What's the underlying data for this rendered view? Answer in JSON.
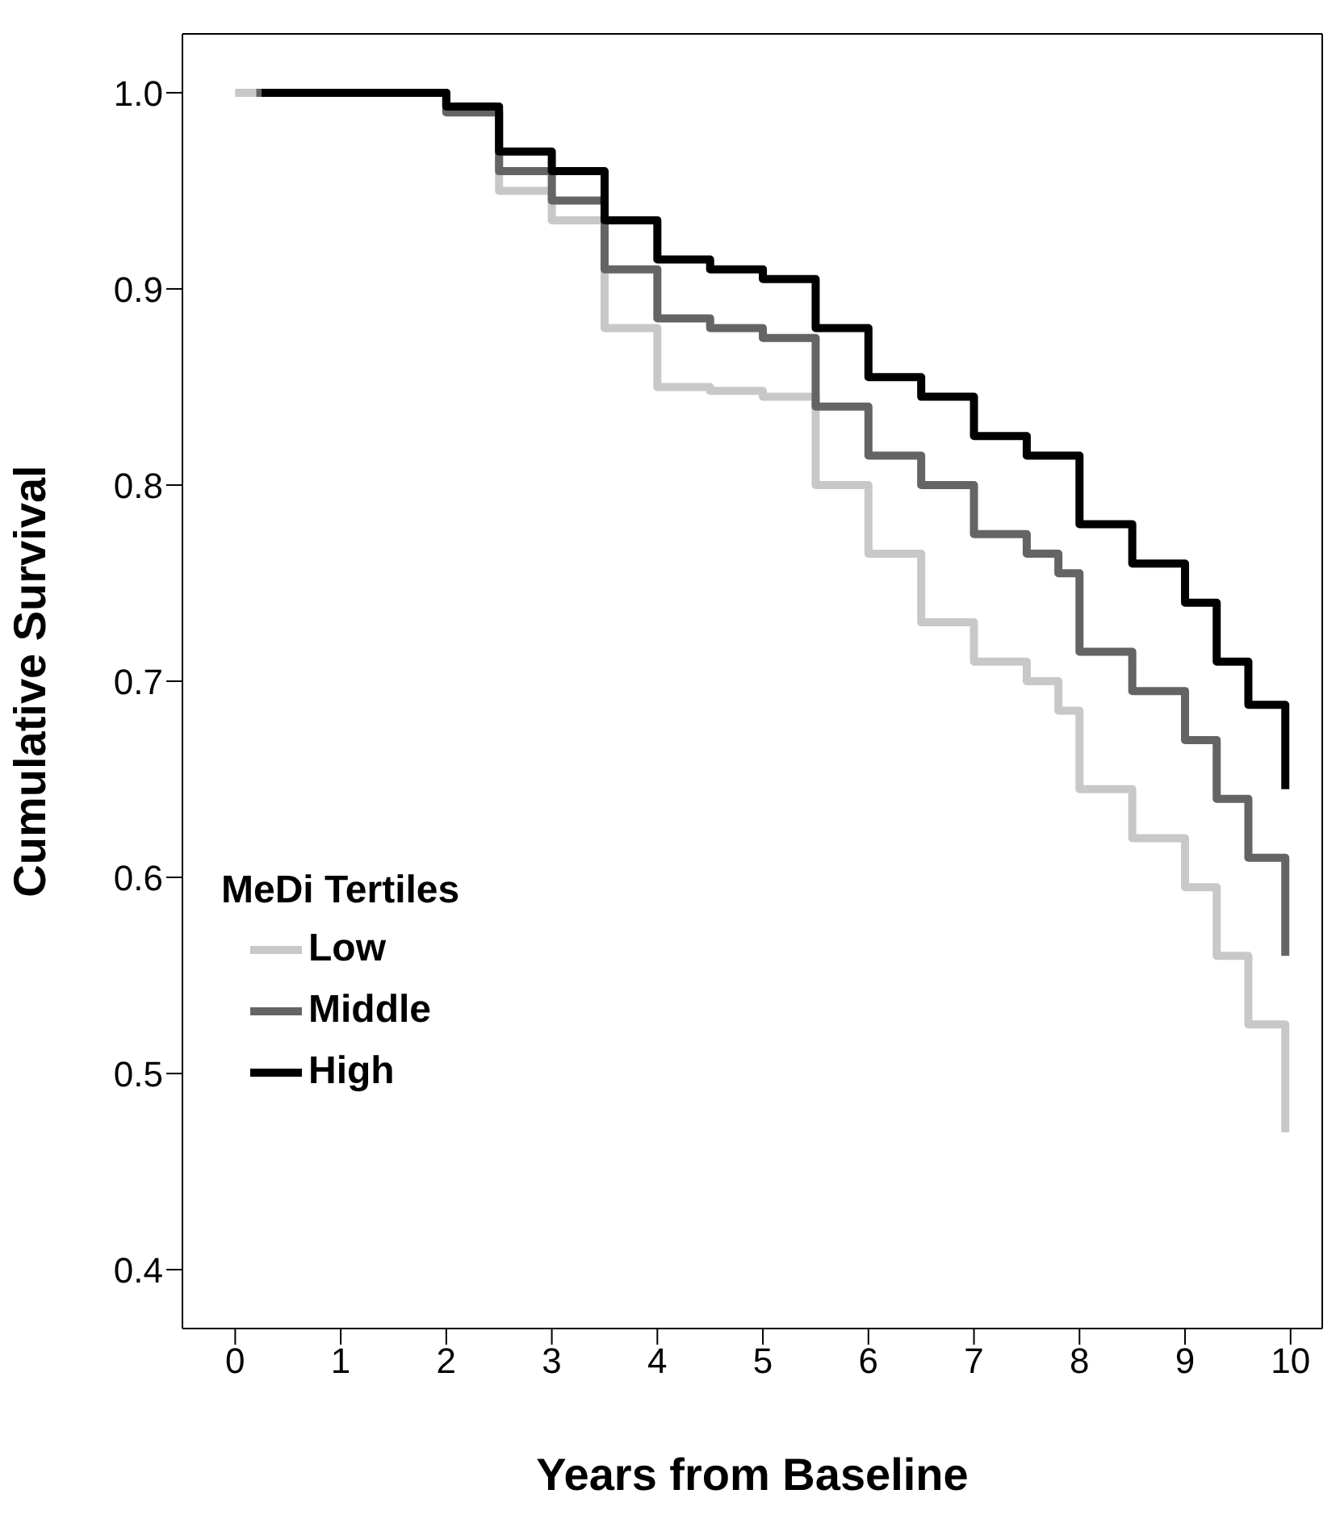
{
  "chart_data": {
    "type": "step",
    "xlabel": "Years from Baseline",
    "ylabel": "Cumulative Survival",
    "legend_title": "MeDi Tertiles",
    "legend": "bottom left",
    "grid": false,
    "marker": "none",
    "line_style": "solid",
    "xlim": [
      -0.5,
      10.3
    ],
    "xticks": [
      0,
      1,
      2,
      3,
      4,
      5,
      6,
      7,
      8,
      9,
      10
    ],
    "ylim": [
      0.37,
      1.03
    ],
    "yticks": [
      0.4,
      0.5,
      0.6,
      0.7,
      0.8,
      0.9,
      {
        "value": 1,
        "label": "1.0"
      }
    ],
    "series": [
      {
        "name": "Low",
        "color": "#c8c8c8",
        "x": [
          0,
          2,
          2.5,
          3,
          3.5,
          4,
          4.5,
          5,
          5.5,
          6,
          6.5,
          7,
          7.5,
          7.8,
          8,
          8.5,
          9,
          9.3,
          9.6,
          9.95,
          9.95
        ],
        "values": [
          1.0,
          0.99,
          0.95,
          0.935,
          0.88,
          0.85,
          0.848,
          0.845,
          0.8,
          0.765,
          0.73,
          0.71,
          0.7,
          0.685,
          0.645,
          0.62,
          0.595,
          0.56,
          0.525,
          0.525,
          0.47
        ]
      },
      {
        "name": "Middle",
        "color": "#646464",
        "x": [
          0.2,
          2,
          2.5,
          3,
          3.5,
          4,
          4.5,
          5,
          5.5,
          6,
          6.5,
          7,
          7.5,
          7.8,
          8,
          8.5,
          9,
          9.3,
          9.6,
          9.95,
          9.95
        ],
        "values": [
          1.0,
          0.99,
          0.96,
          0.945,
          0.91,
          0.885,
          0.88,
          0.875,
          0.84,
          0.815,
          0.8,
          0.775,
          0.765,
          0.755,
          0.715,
          0.695,
          0.67,
          0.64,
          0.61,
          0.61,
          0.56
        ]
      },
      {
        "name": "High",
        "color": "#000000",
        "x": [
          0.25,
          1,
          2,
          2.5,
          3,
          3.5,
          4,
          4.5,
          5,
          5.5,
          6,
          6.5,
          7,
          7.5,
          8,
          8.5,
          9,
          9.3,
          9.6,
          9.95,
          9.95
        ],
        "values": [
          1.0,
          1.0,
          0.993,
          0.97,
          0.96,
          0.935,
          0.915,
          0.91,
          0.905,
          0.88,
          0.855,
          0.845,
          0.825,
          0.815,
          0.78,
          0.76,
          0.74,
          0.71,
          0.688,
          0.688,
          0.645
        ]
      }
    ]
  }
}
